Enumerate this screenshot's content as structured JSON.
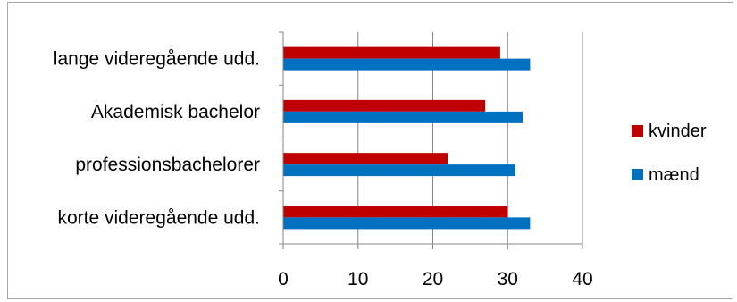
{
  "chart_data": {
    "type": "bar",
    "orientation": "horizontal",
    "title": "",
    "xlabel": "",
    "ylabel": "",
    "categories": [
      "korte videregående udd.",
      "professionsbachelorer",
      "Akademisk bachelor",
      "lange videregående udd."
    ],
    "series": [
      {
        "name": "kvinder",
        "color": "#c00000",
        "values": [
          30,
          22,
          27,
          29
        ]
      },
      {
        "name": "mænd",
        "color": "#0070c0",
        "values": [
          33,
          31,
          32,
          33
        ]
      }
    ],
    "xlim": [
      0,
      40
    ],
    "xticks": [
      0,
      10,
      20,
      30,
      40
    ],
    "xtick_labels": [
      "0",
      "10",
      "20",
      "30",
      "40"
    ],
    "grid": "vertical",
    "legend": {
      "position": "right",
      "order": [
        "kvinder",
        "mænd"
      ]
    }
  }
}
